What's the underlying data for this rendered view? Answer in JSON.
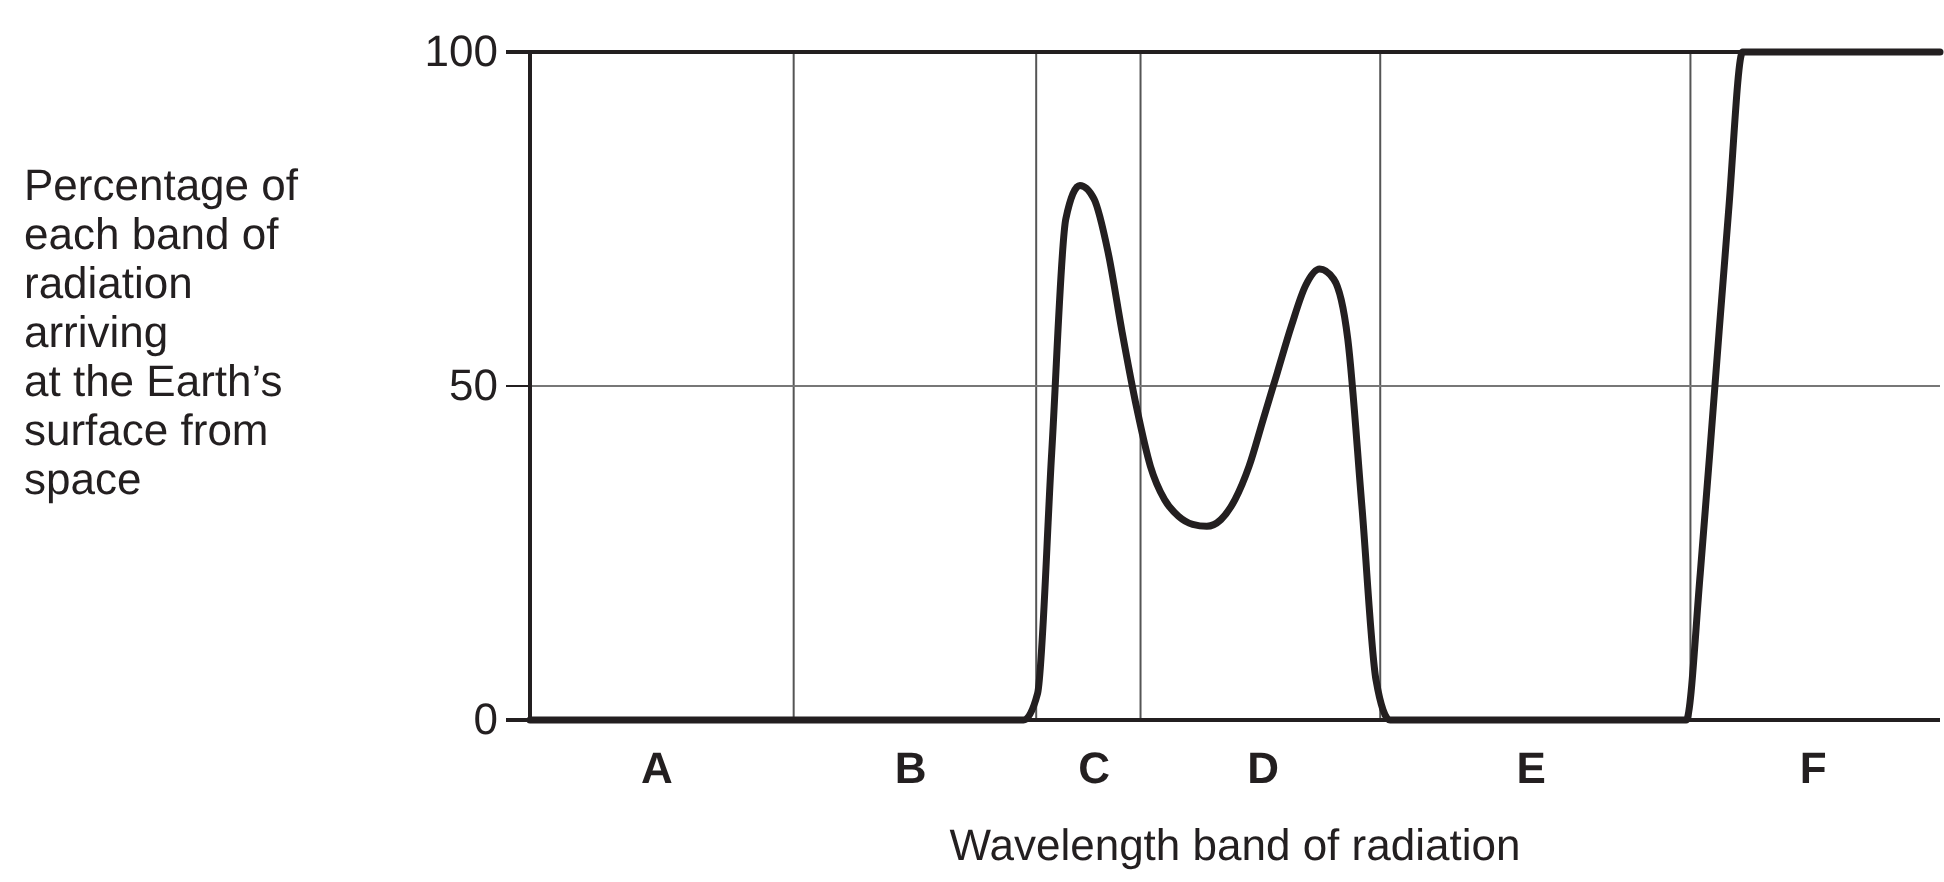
{
  "chart_data": {
    "type": "line",
    "xlabel": "Wavelength band of radiation",
    "ylabel": "Percentage of\neach band of\nradiation\narriving\nat the Earth’s\nsurface from\nspace",
    "categories": [
      null,
      null,
      null,
      null,
      null,
      null,
      null,
      null,
      null,
      "A",
      null,
      null,
      null,
      null,
      null,
      null,
      null,
      null,
      null,
      null,
      null,
      null,
      null,
      null,
      null,
      null,
      null,
      "B",
      null,
      null,
      null,
      null,
      null,
      null,
      null,
      null,
      null,
      null,
      null,
      null,
      "C",
      null,
      null,
      null,
      null,
      null,
      null,
      null,
      null,
      null,
      null,
      null,
      "D",
      null,
      null,
      null,
      null,
      null,
      null,
      null,
      null,
      null,
      null,
      null,
      null,
      null,
      null,
      null,
      null,
      null,
      null,
      "E",
      null,
      null,
      null,
      null,
      null,
      null,
      null,
      null,
      null,
      null,
      null,
      null,
      null,
      null,
      null,
      null,
      null,
      null,
      null,
      "F",
      null,
      null,
      null,
      null,
      null,
      null,
      null,
      null,
      null
    ],
    "series": [
      {
        "color": "#231f20",
        "values": [
          0,
          0,
          0,
          0,
          0,
          0,
          0,
          0,
          0,
          0,
          0,
          0,
          0,
          0,
          0,
          0,
          0,
          0,
          0,
          0,
          0,
          0,
          0,
          0,
          0,
          0,
          0,
          0,
          0,
          0,
          0,
          0,
          0,
          0,
          0,
          0,
          4,
          40,
          75,
          80,
          78,
          70,
          58,
          47,
          38,
          33,
          30.5,
          29.3,
          29,
          30,
          33,
          38,
          45,
          52,
          59,
          65,
          67.5,
          66,
          57,
          32,
          6,
          0,
          0,
          0,
          0,
          0,
          0,
          0,
          0,
          0,
          0,
          0,
          0,
          0,
          0,
          0,
          0,
          0,
          0,
          0,
          0,
          0,
          0,
          22,
          49,
          76,
          100,
          100,
          100,
          100,
          100,
          100,
          100,
          100,
          100,
          100,
          100,
          100,
          100,
          100,
          100
        ]
      }
    ],
    "ylim": [
      0,
      100
    ],
    "yticks": [
      0,
      50,
      100
    ],
    "marker": "none",
    "line_style": "solid",
    "ref_lines": [
      {
        "axis": "y",
        "value": 50,
        "color": "#777777"
      }
    ]
  }
}
